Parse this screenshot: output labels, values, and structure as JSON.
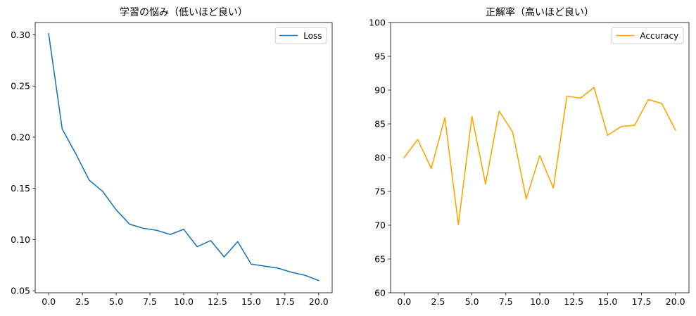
{
  "chart_data": [
    {
      "type": "line",
      "title": "学習の悩み（低いほど良い）",
      "xlabel": "",
      "ylabel": "",
      "x": [
        0,
        1,
        2,
        3,
        4,
        5,
        6,
        7,
        8,
        9,
        10,
        11,
        12,
        13,
        14,
        15,
        16,
        17,
        18,
        19,
        20
      ],
      "series": [
        {
          "name": "Loss",
          "color": "#1f77b4",
          "values": [
            0.301,
            0.208,
            0.184,
            0.158,
            0.147,
            0.129,
            0.115,
            0.111,
            0.109,
            0.105,
            0.11,
            0.093,
            0.099,
            0.083,
            0.098,
            0.076,
            0.074,
            0.072,
            0.068,
            0.065,
            0.06
          ]
        }
      ],
      "xlim": [
        -1,
        21
      ],
      "ylim": [
        0.048,
        0.312
      ],
      "xticks": [
        0.0,
        2.5,
        5.0,
        7.5,
        10.0,
        12.5,
        15.0,
        17.5,
        20.0
      ],
      "xtick_labels": [
        "0.0",
        "2.5",
        "5.0",
        "7.5",
        "10.0",
        "12.5",
        "15.0",
        "17.5",
        "20.0"
      ],
      "yticks": [
        0.05,
        0.1,
        0.15,
        0.2,
        0.25,
        0.3
      ],
      "ytick_labels": [
        "0.05",
        "0.10",
        "0.15",
        "0.20",
        "0.25",
        "0.30"
      ],
      "grid": false,
      "legend": "top-right"
    },
    {
      "type": "line",
      "title": "正解率（高いほど良い）",
      "xlabel": "",
      "ylabel": "",
      "x": [
        0,
        1,
        2,
        3,
        4,
        5,
        6,
        7,
        8,
        9,
        10,
        11,
        12,
        13,
        14,
        15,
        16,
        17,
        18,
        19,
        20
      ],
      "series": [
        {
          "name": "Accuracy",
          "color": "#ffa500",
          "values": [
            80.0,
            82.7,
            78.4,
            85.9,
            70.1,
            86.1,
            76.1,
            86.9,
            83.8,
            73.9,
            80.3,
            75.5,
            89.1,
            88.8,
            90.4,
            83.3,
            84.6,
            84.8,
            88.6,
            88.0,
            84.1
          ]
        }
      ],
      "xlim": [
        -1,
        21
      ],
      "ylim": [
        60,
        100
      ],
      "xticks": [
        0.0,
        2.5,
        5.0,
        7.5,
        10.0,
        12.5,
        15.0,
        17.5,
        20.0
      ],
      "xtick_labels": [
        "0.0",
        "2.5",
        "5.0",
        "7.5",
        "10.0",
        "12.5",
        "15.0",
        "17.5",
        "20.0"
      ],
      "yticks": [
        60,
        65,
        70,
        75,
        80,
        85,
        90,
        95,
        100
      ],
      "ytick_labels": [
        "60",
        "65",
        "70",
        "75",
        "80",
        "85",
        "90",
        "95",
        "100"
      ],
      "grid": false,
      "legend": "top-right"
    }
  ]
}
